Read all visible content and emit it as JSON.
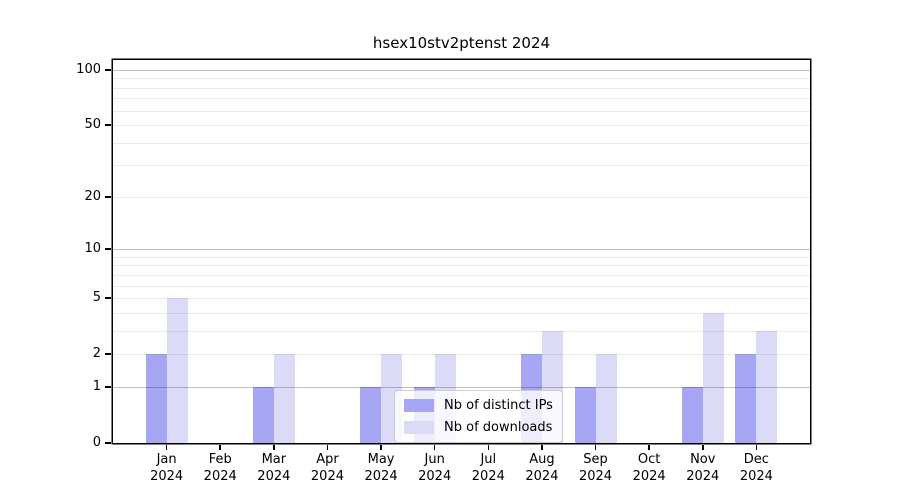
{
  "chart_data": {
    "type": "bar",
    "title": "hsex10stv2ptenst 2024",
    "categories": [
      "Jan 2024",
      "Feb 2024",
      "Mar 2024",
      "Apr 2024",
      "May 2024",
      "Jun 2024",
      "Jul 2024",
      "Aug 2024",
      "Sep 2024",
      "Oct 2024",
      "Nov 2024",
      "Dec 2024"
    ],
    "months": [
      "Jan",
      "Feb",
      "Mar",
      "Apr",
      "May",
      "Jun",
      "Jul",
      "Aug",
      "Sep",
      "Oct",
      "Nov",
      "Dec"
    ],
    "year_label": "2024",
    "series": [
      {
        "name": "Nb of distinct IPs",
        "color": "#a6a6f5",
        "values": [
          2,
          0,
          1,
          0,
          1,
          1,
          0,
          2,
          1,
          0,
          1,
          2
        ]
      },
      {
        "name": "Nb of downloads",
        "color": "#dbdbf8",
        "values": [
          5,
          0,
          2,
          0,
          2,
          2,
          0,
          3,
          2,
          0,
          4,
          3
        ]
      }
    ],
    "yscale": "log1p",
    "ylim": [
      0,
      113
    ],
    "yticks": [
      0,
      1,
      2,
      5,
      10,
      20,
      50,
      100
    ],
    "grid": true,
    "grid_major_values": [
      1,
      10,
      100
    ],
    "grid_minor_values": [
      2,
      3,
      4,
      5,
      6,
      7,
      8,
      9,
      20,
      30,
      40,
      50,
      60,
      70,
      80,
      90
    ],
    "legend_position": "lower center",
    "axis_color": "#000000",
    "background_color": "#ffffff"
  }
}
